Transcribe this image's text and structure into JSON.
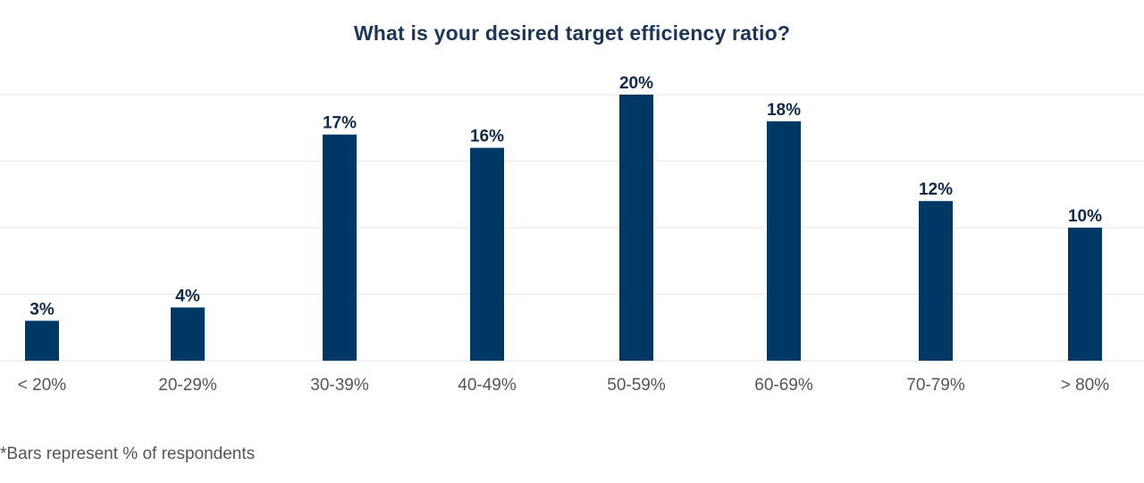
{
  "chart_data": {
    "type": "bar",
    "title": "What is your desired target efficiency ratio?",
    "categories": [
      "< 20%",
      "20-29%",
      "30-39%",
      "40-49%",
      "50-59%",
      "60-69%",
      "70-79%",
      "> 80%"
    ],
    "values": [
      3,
      4,
      17,
      16,
      20,
      18,
      12,
      10
    ],
    "value_labels": [
      "3%",
      "4%",
      "17%",
      "16%",
      "20%",
      "18%",
      "12%",
      "10%"
    ],
    "xlabel": "",
    "ylabel": "",
    "ylim": [
      0,
      20
    ],
    "grid": true,
    "bar_color": "#003865"
  },
  "footnote": "*Bars represent % of respondents"
}
